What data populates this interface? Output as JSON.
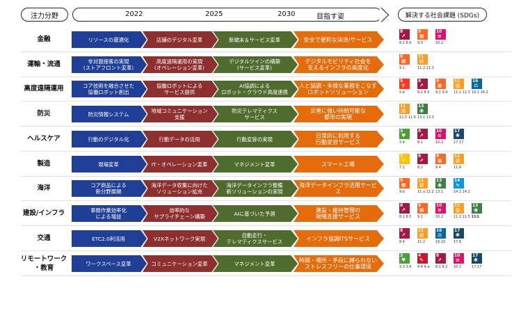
{
  "header": {
    "field_label": "注力分野",
    "years": [
      "2022",
      "2025",
      "2030"
    ],
    "target_label": "目指す姿",
    "sdg_label": "解決する社会課題 (SDGs)"
  },
  "colors": {
    "stage1": "#1f3f96",
    "stage2": "#8e2f2f",
    "stage3": "#4f6b2d",
    "stage4": "#e46c0a"
  },
  "sdg_colors": {
    "1": "#e5243b",
    "2": "#dda63a",
    "3": "#4c9f38",
    "4": "#c5192d",
    "5": "#ff3a21",
    "6": "#26bde2",
    "7": "#fcc30b",
    "8": "#a21942",
    "9": "#fd6925",
    "10": "#dd1367",
    "11": "#fd9d24",
    "12": "#bf8b2e",
    "13": "#3f7e44",
    "14": "#0a97d9",
    "15": "#56c02b",
    "16": "#00689d",
    "17": "#19486a"
  },
  "rows": [
    {
      "label": "金融",
      "stages": [
        "リソースの最適化",
        "店舗のデジタル変革",
        "新端末＆サービス変革",
        "安全で便利な決済/サービス"
      ],
      "sdgs": [
        8,
        9,
        10
      ],
      "captions": [
        "8.2 8.6",
        "9.3",
        "10.2"
      ]
    },
    {
      "label": "運輸・流通",
      "stages": [
        "非対面接客の実現\n(ストアフロント変革)",
        "高度遠隔運用の実現\n(オペレーション変革)",
        "デジタルツインの構築\n(サービス変革)",
        "デジタルモビリティ社会を\n支えるインフラの高度化"
      ],
      "sdgs": [
        9,
        11
      ],
      "captions": [
        "9.1",
        "11.2 11.3"
      ]
    },
    {
      "label": "高度遠隔運用",
      "stages": [
        "コア技術を融合させた\n協働ロボット創出",
        "協働ロボットによる\nサービス提供",
        "AI協調による\nロボット・クラウド高度連携",
        "人と協調・多様な業務をこなす\nロボットソリューション"
      ],
      "sdgs": [
        5,
        8,
        9,
        11,
        16
      ],
      "captions": [
        "5.b",
        "8.2 8.5",
        "9.1 9.4",
        "11.1 11.3",
        "16.1 16.2"
      ]
    },
    {
      "label": "防災",
      "stages": [
        "防災情報システム",
        "地域コミュニケーション\n支援",
        "防災テレマティクス\nサービス",
        "災害に強い持続可能な\n都市の実現"
      ],
      "sdgs": [
        11,
        13
      ],
      "captions": [
        "11.5 11.6",
        "13.1 13.3"
      ]
    },
    {
      "label": "ヘルスケア",
      "stages": [
        "行動のデジタル化",
        "行動データの活用",
        "行動変容の実現",
        "日常的に利用する\n行動変容サービス"
      ],
      "sdgs": [
        3,
        8,
        10,
        17
      ],
      "captions": [
        "3.4",
        "8.1",
        "10.2",
        "17.17"
      ]
    },
    {
      "label": "製造",
      "stages": [
        "現場変革",
        "IT・オペレーション変革",
        "マネジメント変革",
        "スマート工場"
      ],
      "sdgs": [
        7,
        8,
        9,
        11
      ],
      "captions": [
        "7.1",
        "8.2",
        "9.4",
        "11.6"
      ]
    },
    {
      "label": "海洋",
      "stages": [
        "コア商品による\n新分野展開",
        "海洋データ収集に向けた\nソリューション拡充",
        "海洋データインフラ整備\n新ソリューションの実現",
        "海洋データインフラ活用サービス"
      ],
      "sdgs": [
        9,
        11,
        13,
        14
      ],
      "captions": [
        "9.b",
        "11.a 11.2",
        "13.1",
        "14.1 14.2"
      ]
    },
    {
      "label": "建設/インフラ",
      "stages": [
        "事務作業効率化\nによる増益",
        "効率的な\nサプライチェーン構築",
        "AIに基づいた予測",
        "建設・維持管理の\n現場支援サービス"
      ],
      "sdgs": [
        8,
        9,
        10,
        11,
        13
      ],
      "captions": [
        "8.2 8.5",
        "9.1",
        "10.2",
        "11.2 11.5 11.b",
        "13.1"
      ]
    },
    {
      "label": "交通",
      "stages": [
        "ETC2.0利活用",
        "V2Xネットワーク実現",
        "自動走行・\nテレマティクスサービス",
        "インフラ協調ITSサービス"
      ],
      "sdgs": [
        8,
        11,
        16,
        17
      ],
      "captions": [
        "8.4",
        "11.2",
        "16.10",
        "17.8"
      ]
    },
    {
      "label": "リモートワーク\n・教育",
      "stages": [
        "ワークスペース変革",
        "コミュニケーション変革",
        "マネジメント変革",
        "時間・場所・手段に縛られない\nストレスフリーの仕事環境"
      ],
      "sdgs": [
        3,
        4,
        8,
        10,
        17
      ],
      "captions": [
        "3.3 3.4",
        "4.4 4.a",
        "8.1 8.2",
        "10.2",
        "17.17"
      ]
    }
  ]
}
